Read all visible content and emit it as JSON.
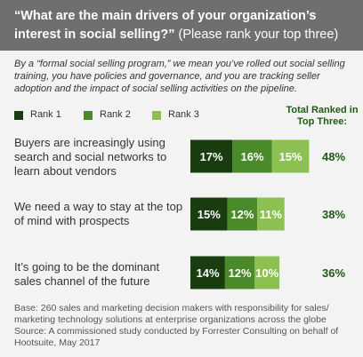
{
  "header": {
    "question": "“What are the main drivers of your organization’s interest in social selling?”",
    "instruction": "(Please rank your top three)"
  },
  "intro": "By a “formal social selling program,” we mean you’ve rolled out social selling training, you have policies and governance, and you are tracking seller adoption and the impact of social selling activities on the pipeline.",
  "total_header": "Total Ranked in Top Three:",
  "colors": {
    "rank1": "#1a3d0f",
    "rank2": "#4a8a2a",
    "rank3": "#8cc152",
    "total_text": "#1f5b14",
    "header_bg": "#6f6f6f",
    "panel_bg": "#f3f3f3"
  },
  "chart_data": {
    "type": "bar",
    "orientation": "horizontal",
    "stacked": true,
    "unit": "%",
    "categories": [
      "Buyers are increasingly using search and social networks to learn about vendors",
      "We need a way to stay at the top of mind with prospects",
      "It’s going to be the dominant sales channel of the future"
    ],
    "series": [
      {
        "name": "Rank 1",
        "values": [
          17,
          15,
          14
        ]
      },
      {
        "name": "Rank 2",
        "values": [
          16,
          12,
          12
        ]
      },
      {
        "name": "Rank 3",
        "values": [
          15,
          11,
          10
        ]
      }
    ],
    "totals": [
      48,
      38,
      36
    ],
    "data_labels": [
      [
        "17%",
        "16%",
        "15%"
      ],
      [
        "15%",
        "12%",
        "11%"
      ],
      [
        "14%",
        "12%",
        "10%"
      ]
    ],
    "total_labels": [
      "48%",
      "38%",
      "36%"
    ],
    "legend": [
      "Rank 1",
      "Rank 2",
      "Rank 3"
    ],
    "legend_position": "top-left",
    "grid": false
  },
  "footer": {
    "base": "Base: 260 sales and marketing decision makers with responsibility for sales/ marketing technology solutions at enterprise organizations across the globe",
    "source": "Source: A commissioned study conducted by Forrester Consulting on behalf of Hootsuite, May 2017"
  }
}
